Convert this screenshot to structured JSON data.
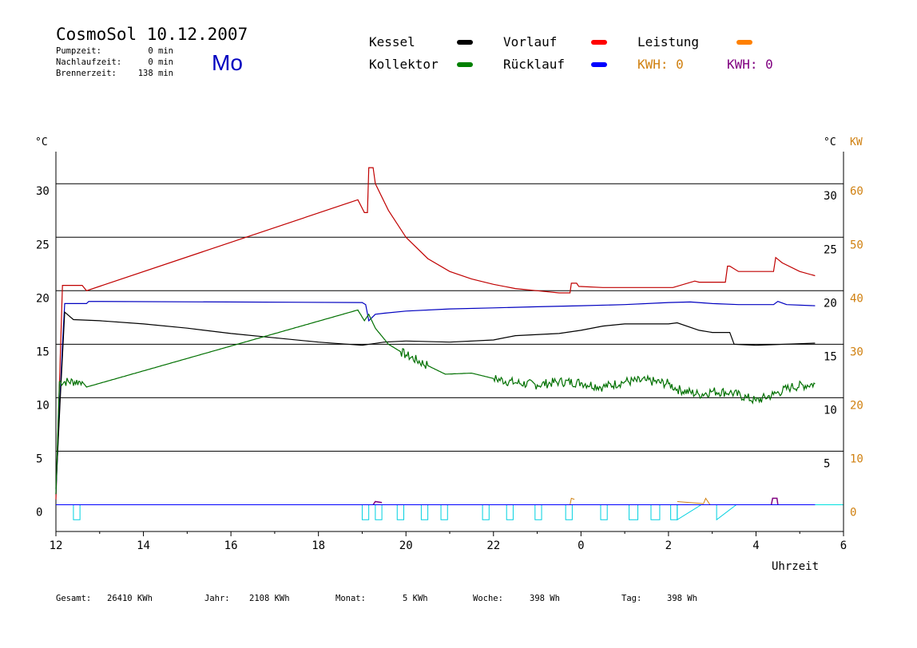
{
  "header": {
    "title": "CosmoSol 10.12.2007",
    "day": "Mo",
    "stats": [
      {
        "label": "Pumpzeit:",
        "value": "0 min"
      },
      {
        "label": "Nachlaufzeit:",
        "value": "0 min"
      },
      {
        "label": "Brennerzeit:",
        "value": "138 min"
      }
    ]
  },
  "legend": {
    "items": [
      {
        "label": "Kessel",
        "color": "#000000"
      },
      {
        "label": "Vorlauf",
        "color": "#ff0000"
      },
      {
        "label": "Leistung",
        "color": "#ff8000"
      },
      {
        "label": "Kollektor",
        "color": "#008000"
      },
      {
        "label": "Rücklauf",
        "color": "#0000ff"
      }
    ],
    "kwh_labels": [
      {
        "text": "KWH: 0",
        "color": "#d08010"
      },
      {
        "text": "KWH: 0",
        "color": "#800080"
      }
    ]
  },
  "footer": [
    {
      "label": "Gesamt:",
      "value": "26410 KWh"
    },
    {
      "label": "Jahr:",
      "value": "2108 KWh"
    },
    {
      "label": "Monat:",
      "value": "5 KWh"
    },
    {
      "label": "Woche:",
      "value": "398 Wh"
    },
    {
      "label": "Tag:",
      "value": "398 Wh"
    }
  ],
  "chart_data": {
    "type": "line",
    "xlabel": "Uhrzeit",
    "ylabel_left": "°C",
    "ylabel_right": "°C",
    "ylabel_right2": "KW",
    "x_ticks": [
      12,
      14,
      16,
      18,
      20,
      22,
      0,
      2,
      4,
      6
    ],
    "x_range_hours": [
      12,
      30
    ],
    "y_left_range": [
      -2.5,
      33
    ],
    "y_left_ticks": [
      0,
      5,
      10,
      15,
      20,
      25,
      30
    ],
    "y_right_ticks": [
      5,
      10,
      15,
      20,
      25,
      30
    ],
    "y_right_kw_ticks": [
      0,
      10,
      20,
      30,
      40,
      50,
      60
    ],
    "gridlines": [
      0,
      5,
      10,
      15,
      20,
      25,
      30
    ],
    "series": [
      {
        "name": "Vorlauf",
        "color": "#c00000",
        "points": [
          [
            12.0,
            0.5
          ],
          [
            12.15,
            20.5
          ],
          [
            12.6,
            20.5
          ],
          [
            12.7,
            20
          ],
          [
            18.9,
            28.5
          ],
          [
            19.05,
            27.3
          ],
          [
            19.12,
            27.3
          ],
          [
            19.15,
            31.5
          ],
          [
            19.25,
            31.5
          ],
          [
            19.3,
            30
          ],
          [
            19.6,
            27.5
          ],
          [
            20,
            25
          ],
          [
            20.5,
            23
          ],
          [
            21,
            21.8
          ],
          [
            21.5,
            21.1
          ],
          [
            22,
            20.6
          ],
          [
            22.5,
            20.2
          ],
          [
            23,
            20.0
          ],
          [
            23.5,
            19.8
          ],
          [
            23.75,
            19.8
          ],
          [
            23.78,
            20.7
          ],
          [
            23.9,
            20.7
          ],
          [
            23.95,
            20.4
          ],
          [
            24.5,
            20.3
          ],
          [
            25,
            20.3
          ],
          [
            25.5,
            20.3
          ],
          [
            26.1,
            20.3
          ],
          [
            26.6,
            20.9
          ],
          [
            26.7,
            20.8
          ],
          [
            27.3,
            20.8
          ],
          [
            27.35,
            22.3
          ],
          [
            27.4,
            22.3
          ],
          [
            27.6,
            21.8
          ],
          [
            28.4,
            21.8
          ],
          [
            28.45,
            23.1
          ],
          [
            28.6,
            22.6
          ],
          [
            29.0,
            21.8
          ],
          [
            29.35,
            21.4
          ]
        ]
      },
      {
        "name": "Rücklauf",
        "color": "#0000c0",
        "points": [
          [
            12.0,
            1
          ],
          [
            12.05,
            6
          ],
          [
            12.15,
            15
          ],
          [
            12.2,
            18.8
          ],
          [
            12.7,
            18.8
          ],
          [
            12.75,
            19
          ],
          [
            19.0,
            18.9
          ],
          [
            19.08,
            18.7
          ],
          [
            19.15,
            17.2
          ],
          [
            19.3,
            17.8
          ],
          [
            19.5,
            17.9
          ],
          [
            20,
            18.1
          ],
          [
            21,
            18.3
          ],
          [
            22,
            18.4
          ],
          [
            23,
            18.5
          ],
          [
            24,
            18.6
          ],
          [
            25,
            18.7
          ],
          [
            26,
            18.9
          ],
          [
            26.5,
            18.95
          ],
          [
            27,
            18.8
          ],
          [
            27.6,
            18.7
          ],
          [
            28.4,
            18.7
          ],
          [
            28.5,
            19
          ],
          [
            28.7,
            18.7
          ],
          [
            29.35,
            18.6
          ]
        ]
      },
      {
        "name": "Kessel",
        "color": "#000000",
        "points": [
          [
            12.0,
            1.5
          ],
          [
            12.1,
            10
          ],
          [
            12.2,
            18
          ],
          [
            12.4,
            17.3
          ],
          [
            13,
            17.2
          ],
          [
            14,
            16.9
          ],
          [
            15,
            16.5
          ],
          [
            16,
            16.0
          ],
          [
            17,
            15.6
          ],
          [
            18,
            15.2
          ],
          [
            19,
            14.9
          ],
          [
            19.5,
            15.2
          ],
          [
            20,
            15.3
          ],
          [
            21,
            15.2
          ],
          [
            22,
            15.4
          ],
          [
            22.5,
            15.8
          ],
          [
            23.5,
            16.0
          ],
          [
            24,
            16.3
          ],
          [
            24.5,
            16.7
          ],
          [
            25,
            16.9
          ],
          [
            26,
            16.9
          ],
          [
            26.2,
            17.0
          ],
          [
            26.7,
            16.3
          ],
          [
            27,
            16.1
          ],
          [
            27.4,
            16.1
          ],
          [
            27.5,
            15.0
          ],
          [
            28,
            14.9
          ],
          [
            29.35,
            15.1
          ]
        ]
      },
      {
        "name": "Kollektor",
        "color": "#007000",
        "points": [
          [
            12.0,
            1
          ],
          [
            12.08,
            11.5
          ],
          [
            12.6,
            11.5
          ],
          [
            12.7,
            11
          ],
          [
            18.9,
            18.2
          ],
          [
            19.05,
            17.2
          ],
          [
            19.15,
            17.8
          ],
          [
            19.3,
            16.5
          ],
          [
            19.6,
            15
          ],
          [
            20,
            14
          ],
          [
            20.5,
            13
          ],
          [
            20.9,
            12.2
          ],
          [
            21.5,
            12.3
          ],
          [
            22,
            11.8
          ],
          [
            22.5,
            11.4
          ],
          [
            23,
            11.2
          ],
          [
            23.5,
            11.5
          ],
          [
            24,
            11.4
          ],
          [
            24.5,
            11.0
          ],
          [
            25,
            11.5
          ],
          [
            25.5,
            11.6
          ],
          [
            26,
            11.3
          ],
          [
            26.2,
            10.8
          ],
          [
            26.7,
            10.3
          ],
          [
            27,
            10.6
          ],
          [
            27.4,
            10.5
          ],
          [
            27.8,
            10.0
          ],
          [
            28,
            9.7
          ],
          [
            28.4,
            10.3
          ],
          [
            28.8,
            11
          ],
          [
            29.35,
            11.3
          ]
        ]
      },
      {
        "name": "Leistung",
        "color": "#0000ff",
        "points": [
          [
            12,
            0
          ],
          [
            29.35,
            0
          ]
        ]
      }
    ],
    "pump_segments_hours": [
      [
        12.4,
        12.55
      ],
      [
        19.0,
        19.15
      ],
      [
        19.3,
        19.45
      ],
      [
        19.8,
        19.95
      ],
      [
        20.35,
        20.5
      ],
      [
        20.8,
        20.95
      ],
      [
        21.75,
        21.9
      ],
      [
        22.3,
        22.45
      ],
      [
        22.95,
        23.1
      ],
      [
        23.65,
        23.8
      ],
      [
        24.45,
        24.6
      ],
      [
        25.1,
        25.3
      ],
      [
        25.6,
        25.8
      ],
      [
        26.05,
        26.2
      ]
    ],
    "pump_ramps_hours": [
      [
        26.2,
        26.75
      ],
      [
        27.1,
        27.55
      ]
    ],
    "noise_ranges": [
      [
        12.05,
        12.6
      ],
      [
        19.9,
        20.5
      ],
      [
        22.0,
        29.35
      ]
    ]
  }
}
